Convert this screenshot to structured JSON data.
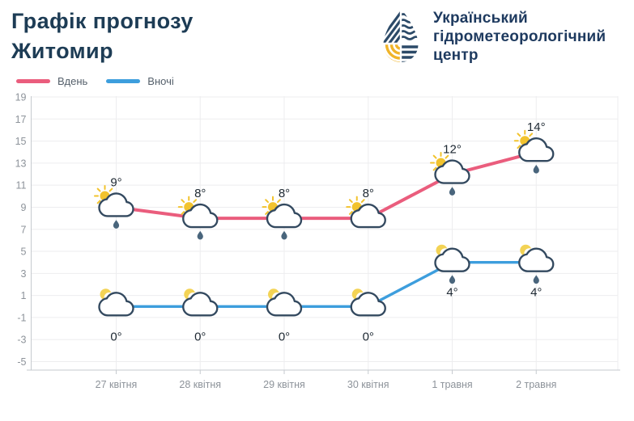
{
  "header": {
    "title_line1": "Графік прогнозу",
    "title_line2": "Житомир",
    "logo": {
      "line1": "Український",
      "line2": "гідрометеорологічний",
      "line3": "центр"
    }
  },
  "chart_data": {
    "type": "line",
    "title": "Графік прогнозу Житомир",
    "categories": [
      "27 квітня",
      "28 квітня",
      "29 квітня",
      "30 квітня",
      "1 травня",
      "2 травня"
    ],
    "series": [
      {
        "name": "Вдень",
        "color": "#ea5d7d",
        "values": [
          9,
          8,
          8,
          8,
          12,
          14
        ],
        "value_labels": [
          "9°",
          "8°",
          "8°",
          "8°",
          "12°",
          "14°"
        ],
        "icon": "sun-cloud",
        "rain_at": [
          true,
          true,
          true,
          false,
          true,
          true
        ],
        "label_position": "above"
      },
      {
        "name": "Вночі",
        "color": "#3d9edd",
        "values": [
          0,
          0,
          0,
          0,
          4,
          4
        ],
        "value_labels": [
          "0°",
          "0°",
          "0°",
          "0°",
          "4°",
          "4°"
        ],
        "icon": "moon-cloud",
        "rain_at": [
          false,
          false,
          false,
          false,
          true,
          true
        ],
        "label_position": "below"
      }
    ],
    "ylim": [
      -5,
      19
    ],
    "yticks": [
      19,
      17,
      15,
      13,
      11,
      9,
      7,
      5,
      3,
      1,
      -1,
      -3,
      -5
    ],
    "ytick_step": 2,
    "xlabel": "",
    "ylabel": "",
    "grid": true,
    "legend_position": "top-left"
  },
  "colors": {
    "title": "#1d3c55",
    "logo_navy": "#2c4a68",
    "logo_yellow": "#f0b429",
    "grid": "#ededef",
    "axis": "#c6cacf",
    "axis_label": "#8d939a",
    "temp_label": "#1d2832",
    "sun": "#f2c32e",
    "moon": "#f3d355",
    "cloud_stroke": "#33495f",
    "raindrop": "#49657c"
  }
}
